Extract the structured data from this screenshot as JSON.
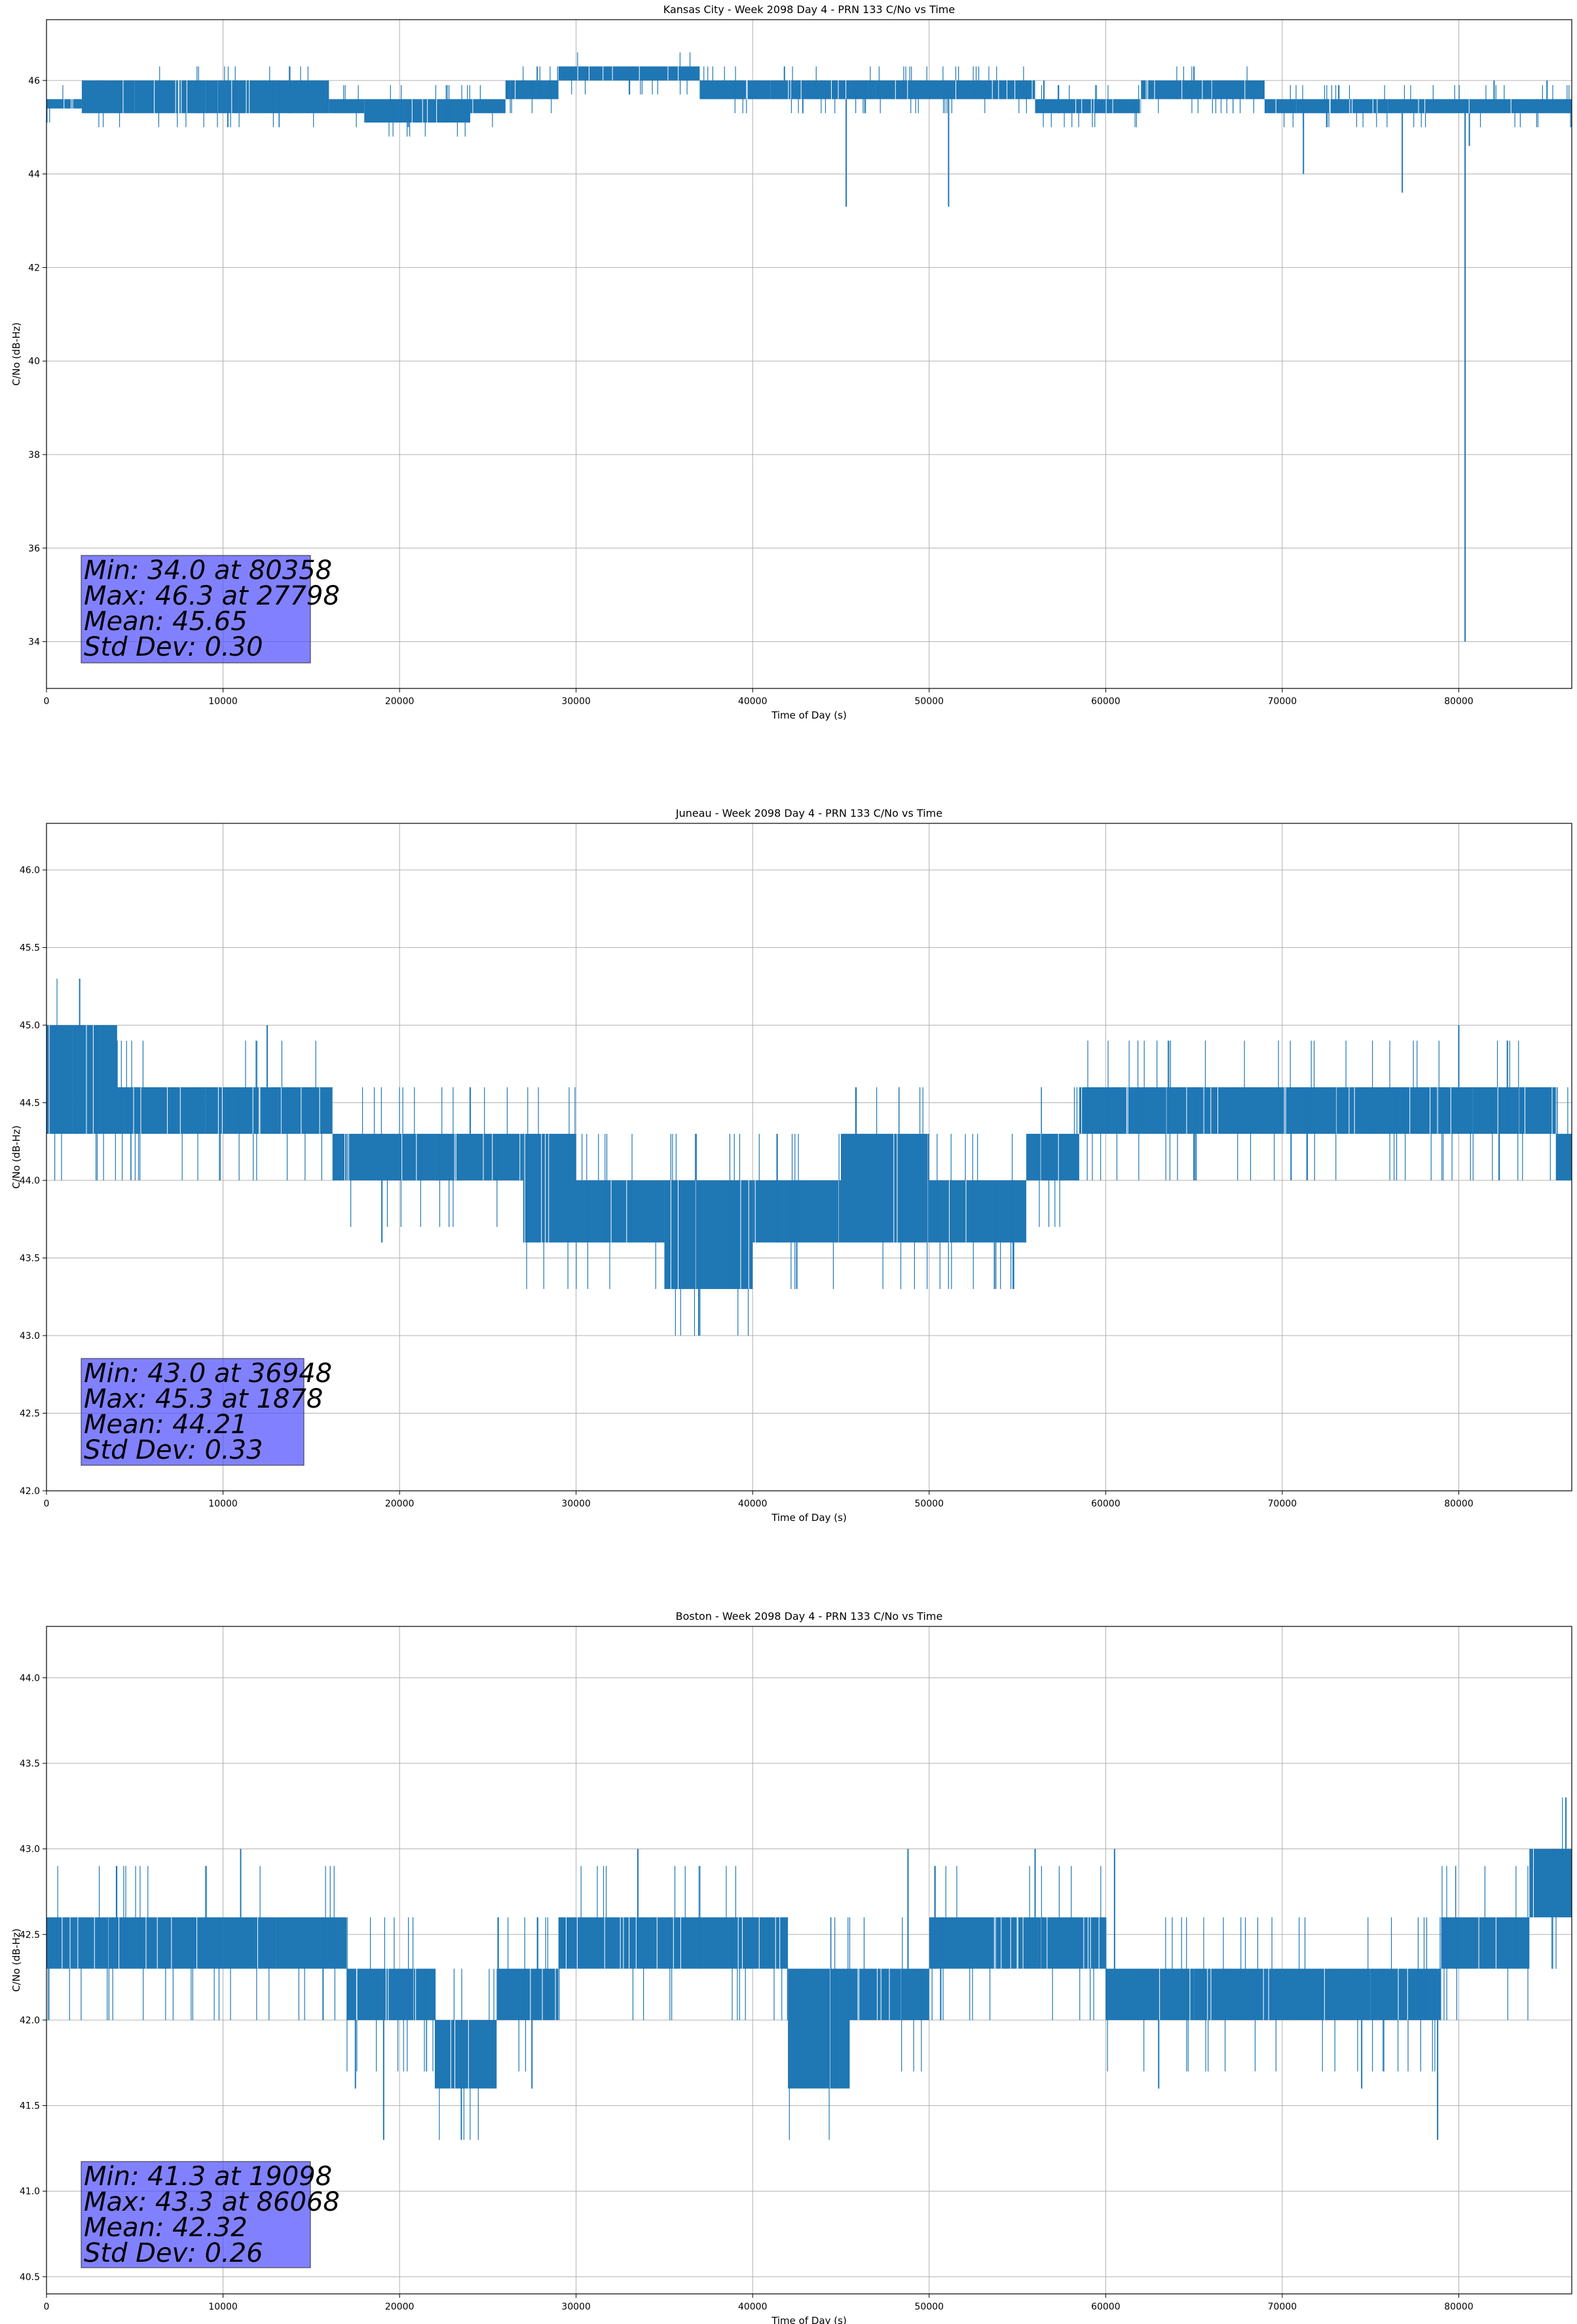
{
  "chart_data": [
    {
      "type": "line",
      "title": "Kansas City - Week 2098 Day 4 - PRN 133 C/No vs Time",
      "xlabel": "Time of Day (s)",
      "ylabel": "C/No (dB-Hz)",
      "xlim": [
        0,
        86400
      ],
      "ylim": [
        33.0,
        47.3
      ],
      "xticks": [
        0,
        10000,
        20000,
        30000,
        40000,
        50000,
        60000,
        70000,
        80000
      ],
      "yticks": [
        34,
        36,
        38,
        40,
        42,
        44,
        46
      ],
      "ytick_labels": [
        "34",
        "36",
        "38",
        "40",
        "42",
        "44",
        "46"
      ],
      "grid": true,
      "color": "#1f77b4",
      "stats": [
        "Min: 34.0 at 80358",
        "Max: 46.3 at 27798",
        "Mean: 45.65",
        "Std Dev: 0.30"
      ],
      "series": [
        {
          "segments": [
            [
              0,
              2000,
              45.4,
              45.6
            ],
            [
              2000,
              5000,
              45.3,
              46.0
            ],
            [
              5000,
              9000,
              45.3,
              46.0
            ],
            [
              9000,
              16000,
              45.3,
              46.0
            ],
            [
              16000,
              18000,
              45.3,
              45.6
            ],
            [
              18000,
              24000,
              45.1,
              45.6
            ],
            [
              24000,
              26000,
              45.3,
              45.6
            ],
            [
              26000,
              29000,
              45.6,
              46.0
            ],
            [
              29000,
              37000,
              46.0,
              46.3
            ],
            [
              37000,
              41000,
              45.6,
              46.0
            ],
            [
              41000,
              47000,
              45.6,
              46.0
            ],
            [
              47000,
              51000,
              45.6,
              46.0
            ],
            [
              51000,
              56000,
              45.6,
              46.0
            ],
            [
              56000,
              62000,
              45.3,
              45.6
            ],
            [
              62000,
              69000,
              45.6,
              46.0
            ],
            [
              69000,
              76000,
              45.3,
              45.6
            ],
            [
              76000,
              86400,
              45.3,
              45.6
            ]
          ],
          "spikes": [
            [
              45300,
              43.3
            ],
            [
              51100,
              43.3
            ],
            [
              71200,
              44.0
            ],
            [
              76800,
              43.6
            ],
            [
              80358,
              34.0
            ],
            [
              80600,
              44.6
            ],
            [
              20500,
              45.0
            ],
            [
              31000,
              46.3
            ],
            [
              41800,
              46.3
            ],
            [
              65000,
              46.3
            ],
            [
              27798,
              46.3
            ],
            [
              56500,
              46.0
            ],
            [
              73000,
              45.3
            ],
            [
              82000,
              46.0
            ],
            [
              85000,
              46.0
            ]
          ]
        }
      ]
    },
    {
      "type": "line",
      "title": "Juneau - Week 2098 Day 4 - PRN 133 C/No vs Time",
      "xlabel": "Time of Day (s)",
      "ylabel": "C/No (dB-Hz)",
      "xlim": [
        0,
        86400
      ],
      "ylim": [
        42.0,
        46.3
      ],
      "xticks": [
        0,
        10000,
        20000,
        30000,
        40000,
        50000,
        60000,
        70000,
        80000
      ],
      "yticks": [
        42.0,
        42.5,
        43.0,
        43.5,
        44.0,
        44.5,
        45.0,
        45.5,
        46.0
      ],
      "ytick_labels": [
        "42.0",
        "42.5",
        "43.0",
        "43.5",
        "44.0",
        "44.5",
        "45.0",
        "45.5",
        "46.0"
      ],
      "grid": true,
      "color": "#1f77b4",
      "stats": [
        "Min: 43.0 at 36948",
        "Max: 45.3 at 1878",
        "Mean: 44.21",
        "Std Dev: 0.33"
      ],
      "series": [
        {
          "segments": [
            [
              0,
              1500,
              44.3,
              45.0
            ],
            [
              1500,
              4000,
              44.3,
              45.0
            ],
            [
              4000,
              9000,
              44.3,
              44.6
            ],
            [
              9000,
              16200,
              44.3,
              44.6
            ],
            [
              16200,
              22000,
              44.0,
              44.3
            ],
            [
              22000,
              27000,
              44.0,
              44.3
            ],
            [
              27000,
              30000,
              43.6,
              44.3
            ],
            [
              30000,
              35000,
              43.6,
              44.0
            ],
            [
              35000,
              40000,
              43.3,
              44.0
            ],
            [
              40000,
              45000,
              43.6,
              44.0
            ],
            [
              45000,
              50000,
              43.6,
              44.3
            ],
            [
              50000,
              55500,
              43.6,
              44.0
            ],
            [
              55500,
              58500,
              44.0,
              44.3
            ],
            [
              58500,
              70000,
              44.3,
              44.6
            ],
            [
              70000,
              80000,
              44.3,
              44.6
            ],
            [
              80000,
              85500,
              44.3,
              44.6
            ],
            [
              85500,
              86400,
              44.0,
              44.3
            ]
          ],
          "spikes": [
            [
              1878,
              45.3
            ],
            [
              36948,
              43.0
            ],
            [
              53700,
              43.3
            ],
            [
              12500,
              45.0
            ],
            [
              80000,
              45.0
            ],
            [
              24000,
              44.6
            ],
            [
              19000,
              43.6
            ],
            [
              42500,
              43.3
            ],
            [
              70500,
              44.0
            ],
            [
              76500,
              44.6
            ],
            [
              65000,
              44.0
            ]
          ]
        }
      ]
    },
    {
      "type": "line",
      "title": "Boston - Week 2098 Day 4 - PRN 133 C/No vs Time",
      "xlabel": "Time of Day (s)",
      "ylabel": "C/No (dB-Hz)",
      "xlim": [
        0,
        86400
      ],
      "ylim": [
        40.4,
        44.3
      ],
      "xticks": [
        0,
        10000,
        20000,
        30000,
        40000,
        50000,
        60000,
        70000,
        80000
      ],
      "yticks": [
        40.5,
        41.0,
        41.5,
        42.0,
        42.5,
        43.0,
        43.5,
        44.0
      ],
      "ytick_labels": [
        "40.5",
        "41.0",
        "41.5",
        "42.0",
        "42.5",
        "43.0",
        "43.5",
        "44.0"
      ],
      "grid": true,
      "color": "#1f77b4",
      "stats": [
        "Min: 41.3 at 19098",
        "Max: 43.3 at 86068",
        "Mean: 42.32",
        "Std Dev: 0.26"
      ],
      "series": [
        {
          "segments": [
            [
              0,
              10000,
              42.3,
              42.6
            ],
            [
              10000,
              13000,
              42.3,
              42.6
            ],
            [
              13000,
              17000,
              42.3,
              42.6
            ],
            [
              17000,
              22000,
              42.0,
              42.3
            ],
            [
              22000,
              25500,
              41.6,
              42.0
            ],
            [
              25500,
              29000,
              42.0,
              42.3
            ],
            [
              29000,
              42000,
              42.3,
              42.6
            ],
            [
              42000,
              45500,
              41.6,
              42.3
            ],
            [
              45500,
              50000,
              42.0,
              42.3
            ],
            [
              50000,
              60000,
              42.3,
              42.6
            ],
            [
              60000,
              65000,
              42.0,
              42.3
            ],
            [
              65000,
              70000,
              42.0,
              42.3
            ],
            [
              70000,
              75000,
              42.0,
              42.3
            ],
            [
              75000,
              79000,
              42.0,
              42.3
            ],
            [
              79000,
              84000,
              42.3,
              42.6
            ],
            [
              84000,
              86400,
              42.6,
              43.0
            ]
          ],
          "spikes": [
            [
              19098,
              41.3
            ],
            [
              86068,
              43.3
            ],
            [
              23500,
              41.3
            ],
            [
              78800,
              41.3
            ],
            [
              43000,
              41.6
            ],
            [
              63000,
              41.6
            ],
            [
              74500,
              41.6
            ],
            [
              11000,
              43.0
            ],
            [
              33500,
              43.0
            ],
            [
              48800,
              43.0
            ],
            [
              56000,
              43.0
            ],
            [
              60500,
              43.0
            ],
            [
              17500,
              41.6
            ],
            [
              27500,
              41.6
            ]
          ]
        }
      ]
    }
  ]
}
